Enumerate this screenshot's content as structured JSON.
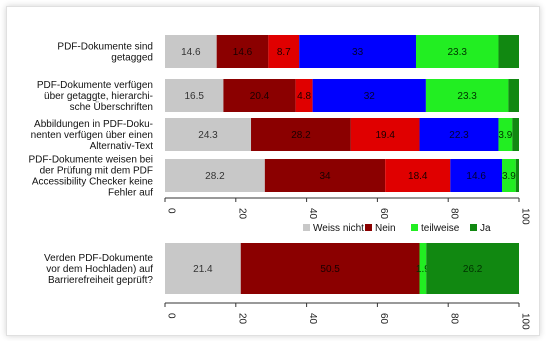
{
  "chart_data": [
    {
      "type": "bar",
      "orientation": "horizontal",
      "stacked": true,
      "categories": [
        [
          "PDF-Dokumente sind",
          "getagged"
        ],
        [
          "PDF-Dokumente verfügen",
          "über getaggte, hierarchi-",
          "sche Überschriften"
        ],
        [
          "Abbildungen in PDF-Doku-",
          "nenten verfügen über einen",
          "Alternativ-Text"
        ],
        [
          "PDF-Dokumente weisen bei",
          "der Prüfung mit dem PDF",
          "Accessibility Checker keine",
          "Fehler auf"
        ]
      ],
      "series": [
        {
          "name": "",
          "color": "#c8c8c8",
          "label_color": "#333333",
          "values": [
            14.6,
            16.5,
            24.3,
            28.2
          ]
        },
        {
          "name": "Weiss nicht",
          "color": "#8b0000",
          "label_color": "#1a0000",
          "values": [
            14.6,
            20.4,
            28.2,
            34
          ]
        },
        {
          "name": "Nein",
          "color": "#e00000",
          "label_color": "#1a0000",
          "values": [
            8.7,
            4.8,
            19.4,
            18.4
          ]
        },
        {
          "name": "teilweise",
          "color": "#0000ff",
          "label_color": "#000033",
          "values": [
            33,
            32,
            22.3,
            14.6
          ]
        },
        {
          "name": "Ja",
          "color": "#22ee22",
          "label_color": "#003300",
          "values": [
            23.3,
            23.3,
            3.9,
            3.9
          ]
        },
        {
          "name": "",
          "color": "#118811",
          "label_color": "#003300",
          "values": [
            5.8,
            3.0,
            1.9,
            0.9
          ]
        }
      ],
      "hidden_labels": [
        [
          false,
          false,
          false,
          false,
          false,
          true
        ],
        [
          false,
          false,
          false,
          false,
          false,
          true
        ],
        [
          false,
          false,
          false,
          false,
          false,
          true
        ],
        [
          false,
          false,
          false,
          false,
          false,
          true
        ]
      ],
      "xlim": [
        0,
        100
      ],
      "xticks": [
        "0",
        "20",
        "40",
        "60",
        "80",
        "100"
      ],
      "legend": {
        "entries": [
          {
            "label": "Weiss nicht",
            "color": "#c8c8c8"
          },
          {
            "label": "Nein",
            "color": "#8b0000"
          },
          {
            "label": "teilweise",
            "color": "#22ee22"
          },
          {
            "label": "Ja",
            "color": "#118811"
          }
        ],
        "placement": "below"
      }
    },
    {
      "type": "bar",
      "orientation": "horizontal",
      "stacked": true,
      "categories": [
        [
          "Verden PDF-Dokumente",
          "vor dem Hochladen) auf",
          "Barrierefreiheit geprüft?"
        ]
      ],
      "series": [
        {
          "name": "Weiss nicht",
          "color": "#c8c8c8",
          "label_color": "#333333",
          "values": [
            21.4
          ]
        },
        {
          "name": "Nein",
          "color": "#8b0000",
          "label_color": "#1a0000",
          "values": [
            50.5
          ]
        },
        {
          "name": "teilweise",
          "color": "#22ee22",
          "label_color": "#003300",
          "values": [
            1.9
          ]
        },
        {
          "name": "Ja",
          "color": "#118811",
          "label_color": "#003300",
          "values": [
            26.2
          ]
        }
      ],
      "xlim": [
        0,
        100
      ],
      "xticks": [
        "0",
        "20",
        "40",
        "60",
        "80",
        "100"
      ]
    }
  ]
}
